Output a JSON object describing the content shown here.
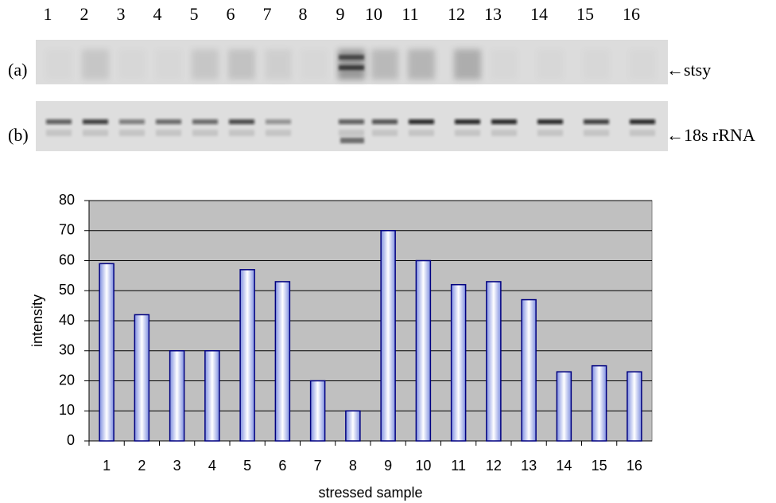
{
  "gel": {
    "lane_labels": [
      "1",
      "2",
      "3",
      "4",
      "5",
      "6",
      "7",
      "8",
      "9",
      "10",
      "11",
      "12",
      "13",
      "14",
      "15",
      "16"
    ],
    "panels": [
      {
        "label": "(a)",
        "marker": "←stsy"
      },
      {
        "label": "(b)",
        "marker": "←18s rRNA"
      }
    ]
  },
  "chart_data": {
    "type": "bar",
    "xlabel": "stressed sample",
    "ylabel": "intensity",
    "categories": [
      "1",
      "2",
      "3",
      "4",
      "5",
      "6",
      "7",
      "8",
      "9",
      "10",
      "11",
      "12",
      "13",
      "14",
      "15",
      "16"
    ],
    "values": [
      59,
      42,
      30,
      30,
      57,
      53,
      20,
      10,
      70,
      60,
      52,
      53,
      47,
      23,
      25,
      23
    ],
    "ylim": [
      0,
      80
    ],
    "yticks": [
      0,
      10,
      20,
      30,
      40,
      50,
      60,
      70,
      80
    ],
    "grid": true,
    "plot_background": "#c0c0c0",
    "color": "#000080"
  }
}
